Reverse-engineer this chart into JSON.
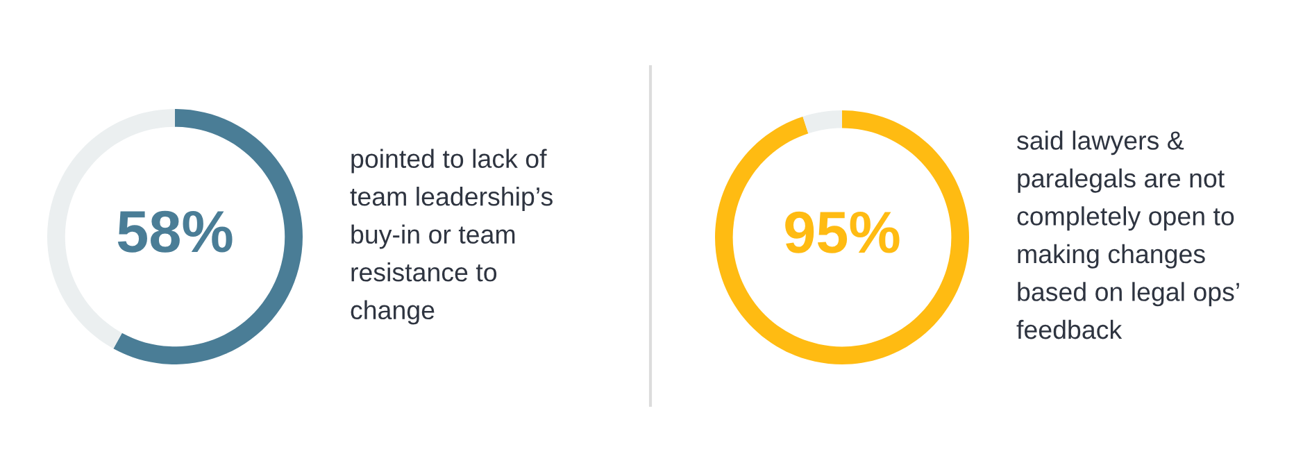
{
  "chart_data": [
    {
      "type": "donut",
      "categories": [
        null,
        null
      ],
      "values": [
        58,
        42
      ],
      "colors": [
        "#4a7d96",
        "#ebeff0"
      ],
      "value_labels": [
        "58%",
        null
      ],
      "annotations": [
        "pointed to lack of\nteam leadership’s\nbuy-in or team\nresistance to\nchange"
      ]
    },
    {
      "type": "donut",
      "categories": [
        null,
        null
      ],
      "values": [
        95,
        5
      ],
      "colors": [
        "#ffbb12",
        "#ebeff0"
      ],
      "value_labels": [
        "95%",
        null
      ],
      "annotations": [
        "said lawyers &\nparalegals are not\ncompletely open to\nmaking changes\nbased on legal ops’\nfeedback"
      ]
    }
  ]
}
